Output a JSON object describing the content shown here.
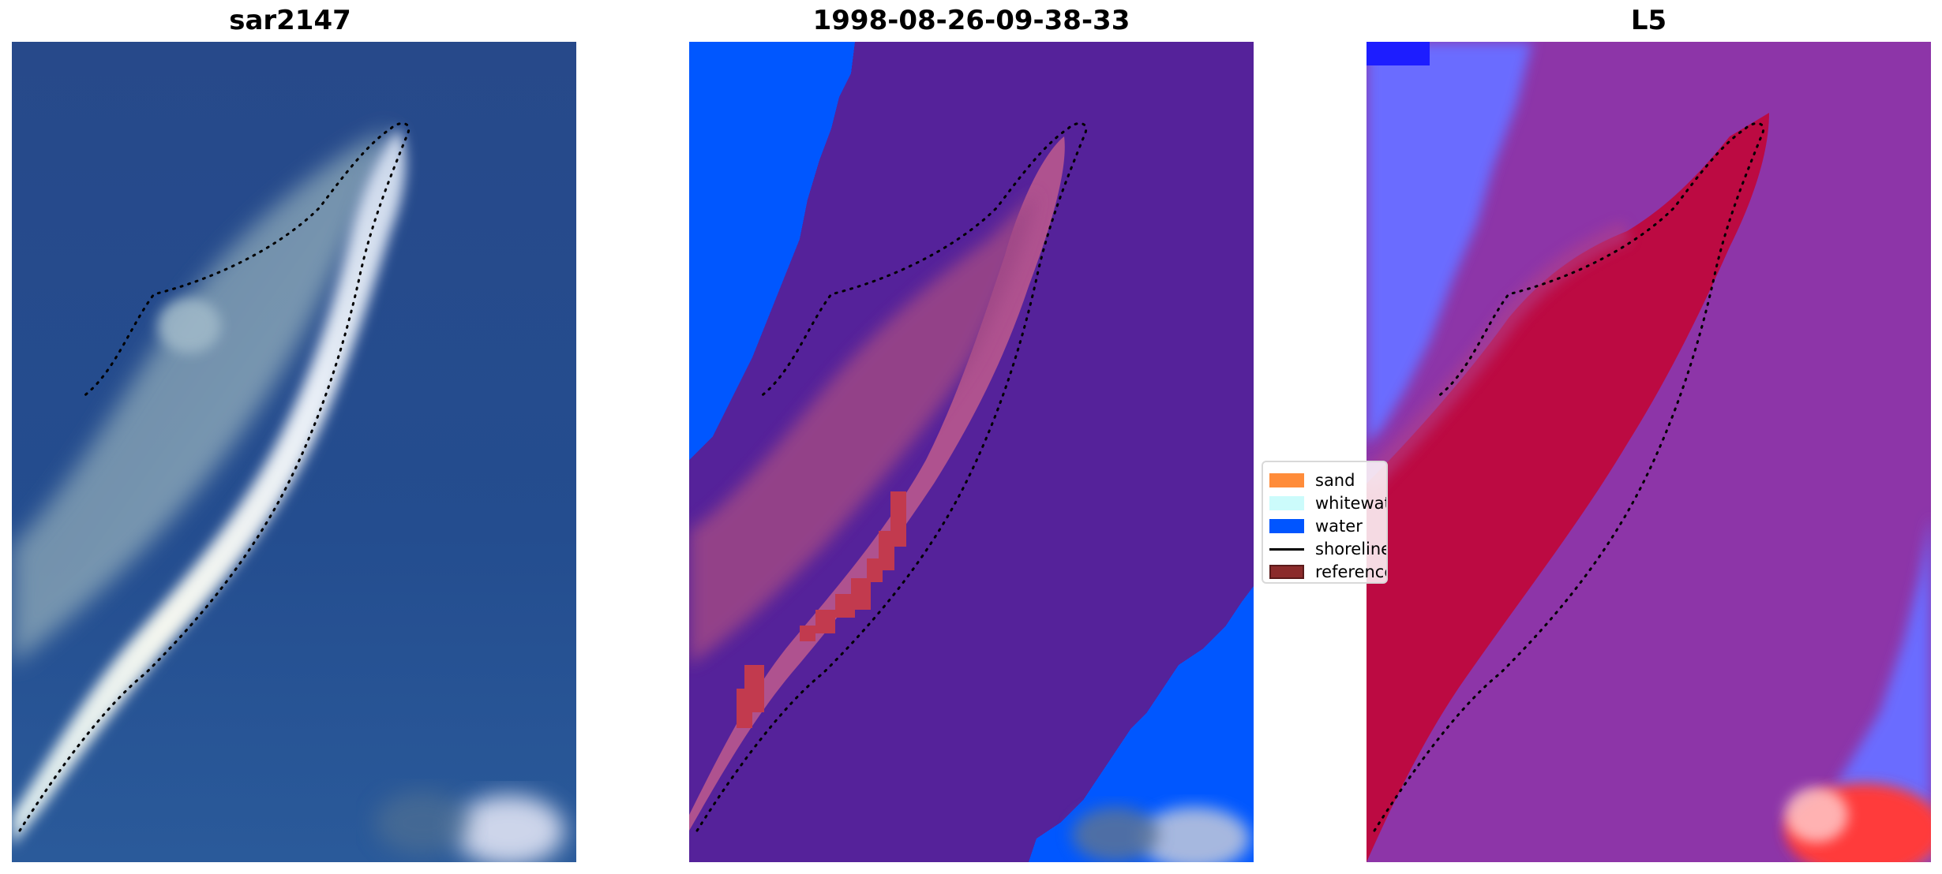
{
  "panels": [
    {
      "title": "sar2147"
    },
    {
      "title": "1998-08-26-09-38-33"
    },
    {
      "title": "L5"
    }
  ],
  "legend": {
    "items": [
      {
        "label": "sand",
        "color": "#ff8c3a",
        "kind": "patch"
      },
      {
        "label": "whitewater",
        "color": "#ccfbfb",
        "kind": "patch"
      },
      {
        "label": "water",
        "color": "#0055ff",
        "kind": "patch"
      },
      {
        "label": "shoreline",
        "color": "#000000",
        "kind": "line"
      },
      {
        "label": "reference shoreline",
        "color": "#8b2b2b",
        "kind": "patch"
      }
    ]
  },
  "colors": {
    "rgb_water": "#244b8a",
    "rgb_sand_bright": "#eef3f6",
    "class_background": "#55229a",
    "class_water": "#0057ff",
    "class_sand_overlay": "#b4558e",
    "class_sand_red": "#c23a4e",
    "index_water_blue": "#5b5cff",
    "index_mid_purple": "#8d35a8",
    "index_land_red": "#c0073a"
  }
}
